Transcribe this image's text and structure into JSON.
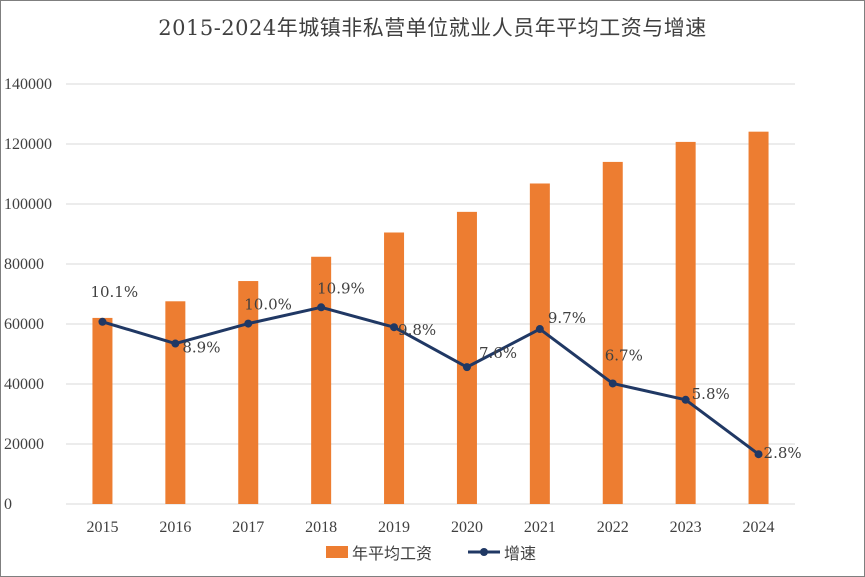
{
  "colors": {
    "bar": "#ED7D31",
    "line": "#203864",
    "grid": "#d9d9d9",
    "text": "#404040"
  },
  "chart_data": {
    "type": "bar",
    "title": "2015-2024年城镇非私营单位就业人员年平均工资与增速",
    "categories": [
      "2015",
      "2016",
      "2017",
      "2018",
      "2019",
      "2020",
      "2021",
      "2022",
      "2023",
      "2024"
    ],
    "ylim": [
      0,
      140000
    ],
    "yticks": [
      "0",
      "20000",
      "40000",
      "60000",
      "80000",
      "100000",
      "120000",
      "140000"
    ],
    "grid": true,
    "legend_position": "bottom",
    "series": [
      {
        "name": "年平均工资",
        "type": "bar",
        "values": [
          62029,
          67569,
          74318,
          82413,
          90501,
          97379,
          106837,
          114029,
          120698,
          124110
        ]
      },
      {
        "name": "增速",
        "type": "line",
        "values": [
          10.1,
          8.9,
          10.0,
          10.9,
          9.8,
          7.6,
          9.7,
          6.7,
          5.8,
          2.8
        ],
        "labels": [
          "10.1%",
          "8.9%",
          "10.0%",
          "10.9%",
          "9.8%",
          "7.6%",
          "9.7%",
          "6.7%",
          "5.8%",
          "2.8%"
        ]
      }
    ]
  }
}
